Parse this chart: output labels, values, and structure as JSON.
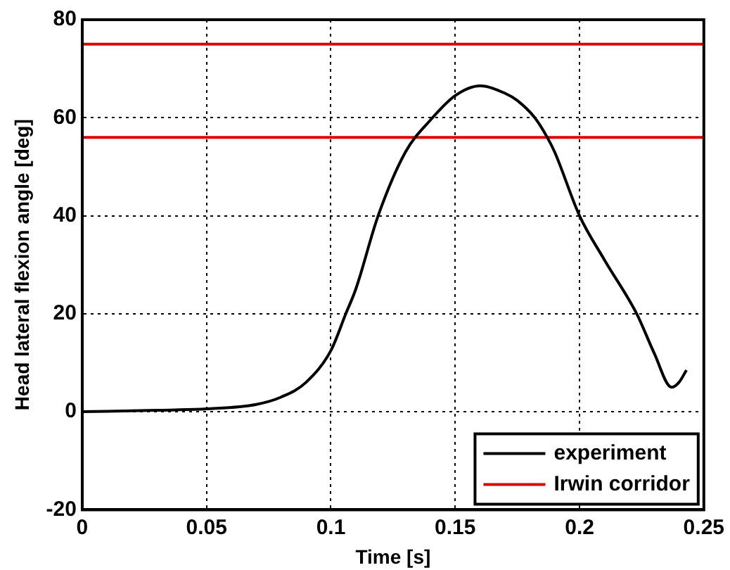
{
  "chart_data": {
    "type": "line",
    "xlabel": "Time [s]",
    "ylabel": "Head lateral flexion angle [deg]",
    "xlim": [
      0,
      0.25
    ],
    "xticks": [
      0,
      0.05,
      0.1,
      0.15,
      0.2,
      0.25
    ],
    "ylim": [
      -20,
      80
    ],
    "yticks": [
      -20,
      0,
      20,
      40,
      60,
      80
    ],
    "grid": true,
    "legend": "bottom right",
    "line_style": "solid",
    "marker": "none",
    "series": [
      {
        "name": "experiment",
        "color": "#000000",
        "x": [
          0,
          0.03,
          0.05,
          0.07,
          0.08,
          0.09,
          0.1,
          0.106,
          0.11,
          0.119,
          0.13,
          0.14,
          0.15,
          0.16,
          0.17,
          0.175,
          0.182,
          0.187,
          0.19,
          0.2,
          0.21,
          0.223,
          0.23,
          0.237,
          0.24,
          0.243
        ],
        "values": [
          0,
          0.3,
          0.6,
          1.5,
          3,
          6,
          12.5,
          20,
          25,
          40,
          53,
          59.5,
          64.5,
          66.5,
          65,
          63.5,
          60,
          56,
          53,
          40,
          31,
          20,
          12,
          5,
          6,
          8.5
        ]
      },
      {
        "name": "Irwin corridor",
        "color": "#e00000",
        "x": [
          0,
          0.25
        ],
        "values": [
          75,
          75
        ]
      },
      {
        "color": "#e00000",
        "x": [
          0,
          0.25
        ],
        "values": [
          56,
          56
        ]
      }
    ]
  }
}
